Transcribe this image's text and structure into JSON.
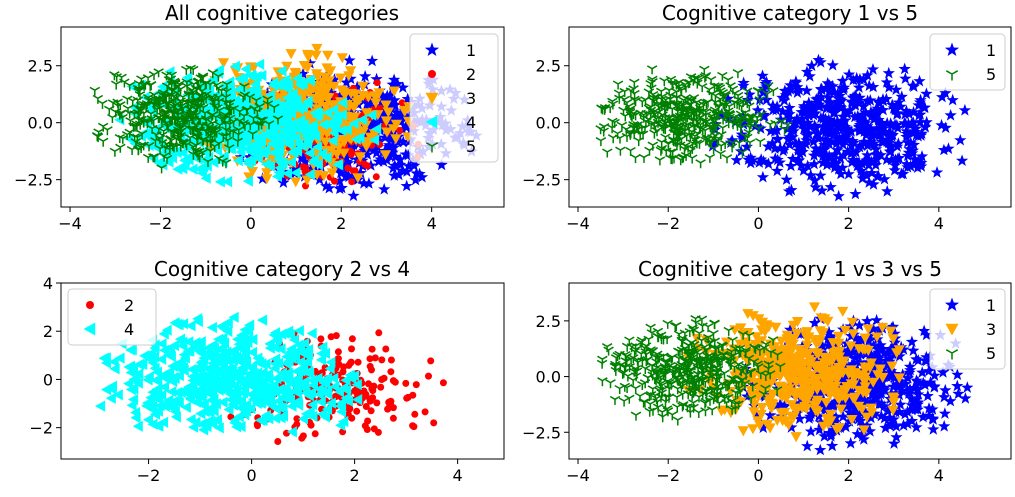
{
  "chart_data": [
    {
      "type": "scatter",
      "title": "All cognitive categories",
      "xlabel": "",
      "ylabel": "",
      "xlim": [
        -4.2,
        5.6
      ],
      "ylim": [
        -3.7,
        4.2
      ],
      "xticks": [
        -4,
        -2,
        0,
        2,
        4
      ],
      "yticks": [
        -2.5,
        0.0,
        2.5
      ],
      "xtick_labels": [
        "−4",
        "−2",
        "0",
        "2",
        "4"
      ],
      "ytick_labels": [
        "−2.5",
        "0.0",
        "2.5"
      ],
      "legend_position": "right",
      "series": [
        {
          "name": "1",
          "color": "#0000ff",
          "marker": "star",
          "approx_center": [
            2.2,
            -0.3
          ],
          "approx_spread": [
            1.1,
            1.3
          ],
          "approx_x_range": [
            -1.5,
            5.4
          ],
          "approx_y_range": [
            -3.4,
            3.9
          ]
        },
        {
          "name": "2",
          "color": "#ff0000",
          "marker": "circle",
          "approx_center": [
            1.6,
            -0.5
          ],
          "approx_spread": [
            0.9,
            1.1
          ],
          "approx_x_range": [
            -1.5,
            4.2
          ],
          "approx_y_range": [
            -2.8,
            3.5
          ]
        },
        {
          "name": "3",
          "color": "#ffa500",
          "marker": "triangle-down",
          "approx_center": [
            1.1,
            0.3
          ],
          "approx_spread": [
            1.0,
            1.3
          ],
          "approx_x_range": [
            -1.8,
            3.9
          ],
          "approx_y_range": [
            -2.8,
            3.8
          ]
        },
        {
          "name": "4",
          "color": "#00ffff",
          "marker": "triangle-left",
          "approx_center": [
            -0.2,
            0.0
          ],
          "approx_spread": [
            1.2,
            1.1
          ],
          "approx_x_range": [
            -3.0,
            3.0
          ],
          "approx_y_range": [
            -2.8,
            3.6
          ]
        },
        {
          "name": "5",
          "color": "#008000",
          "marker": "tri-down",
          "approx_center": [
            -1.6,
            0.3
          ],
          "approx_spread": [
            0.9,
            1.0
          ],
          "approx_x_range": [
            -3.5,
            2.0
          ],
          "approx_y_range": [
            -2.4,
            4.0
          ]
        }
      ]
    },
    {
      "type": "scatter",
      "title": "Cognitive category 1 vs 5",
      "xlabel": "",
      "ylabel": "",
      "xlim": [
        -4.2,
        5.6
      ],
      "ylim": [
        -3.7,
        4.2
      ],
      "xticks": [
        -4,
        -2,
        0,
        2,
        4
      ],
      "yticks": [
        -2.5,
        0.0,
        2.5
      ],
      "xtick_labels": [
        "−4",
        "−2",
        "0",
        "2",
        "4"
      ],
      "ytick_labels": [
        "−2.5",
        "0.0",
        "2.5"
      ],
      "legend_position": "top-right",
      "series": [
        {
          "name": "1",
          "color": "#0000ff",
          "marker": "star",
          "approx_center": [
            1.9,
            -0.2
          ],
          "approx_spread": [
            1.2,
            1.3
          ],
          "approx_x_range": [
            -1.5,
            5.4
          ],
          "approx_y_range": [
            -3.4,
            3.9
          ]
        },
        {
          "name": "5",
          "color": "#008000",
          "marker": "tri-down",
          "approx_center": [
            -1.6,
            0.3
          ],
          "approx_spread": [
            0.9,
            1.0
          ],
          "approx_x_range": [
            -3.5,
            2.0
          ],
          "approx_y_range": [
            -2.4,
            4.0
          ]
        }
      ]
    },
    {
      "type": "scatter",
      "title": "Cognitive category 2 vs 4",
      "xlabel": "",
      "ylabel": "",
      "xlim": [
        -3.7,
        4.9
      ],
      "ylim": [
        -3.3,
        4.0
      ],
      "xticks": [
        -2,
        0,
        2,
        4
      ],
      "yticks": [
        -2,
        0,
        2,
        4
      ],
      "xtick_labels": [
        "−2",
        "0",
        "2",
        "4"
      ],
      "ytick_labels": [
        "−2",
        "0",
        "2",
        "4"
      ],
      "legend_position": "top-left",
      "series": [
        {
          "name": "2",
          "color": "#ff0000",
          "marker": "circle",
          "approx_center": [
            1.6,
            -0.4
          ],
          "approx_spread": [
            0.9,
            1.1
          ],
          "approx_x_range": [
            -1.5,
            4.4
          ],
          "approx_y_range": [
            -2.8,
            3.5
          ]
        },
        {
          "name": "4",
          "color": "#00ffff",
          "marker": "triangle-left",
          "approx_center": [
            -0.3,
            0.0
          ],
          "approx_spread": [
            1.2,
            1.1
          ],
          "approx_x_range": [
            -3.0,
            2.6
          ],
          "approx_y_range": [
            -2.3,
            3.7
          ]
        }
      ]
    },
    {
      "type": "scatter",
      "title": "Cognitive category 1 vs 3 vs 5",
      "xlabel": "",
      "ylabel": "",
      "xlim": [
        -4.2,
        5.6
      ],
      "ylim": [
        -3.7,
        4.2
      ],
      "xticks": [
        -4,
        -2,
        0,
        2,
        4
      ],
      "yticks": [
        -2.5,
        0.0,
        2.5
      ],
      "xtick_labels": [
        "−4",
        "−2",
        "0",
        "2",
        "4"
      ],
      "ytick_labels": [
        "−2.5",
        "0.0",
        "2.5"
      ],
      "legend_position": "top-right",
      "series": [
        {
          "name": "1",
          "color": "#0000ff",
          "marker": "star",
          "approx_center": [
            2.1,
            -0.4
          ],
          "approx_spread": [
            1.1,
            1.3
          ],
          "approx_x_range": [
            -1.5,
            5.4
          ],
          "approx_y_range": [
            -3.4,
            3.9
          ]
        },
        {
          "name": "3",
          "color": "#ffa500",
          "marker": "triangle-down",
          "approx_center": [
            0.9,
            0.2
          ],
          "approx_spread": [
            1.0,
            1.3
          ],
          "approx_x_range": [
            -1.8,
            3.9
          ],
          "approx_y_range": [
            -2.8,
            3.8
          ]
        },
        {
          "name": "5",
          "color": "#008000",
          "marker": "tri-down",
          "approx_center": [
            -1.6,
            0.3
          ],
          "approx_spread": [
            0.9,
            1.0
          ],
          "approx_x_range": [
            -3.5,
            2.0
          ],
          "approx_y_range": [
            -2.4,
            4.0
          ]
        }
      ]
    }
  ]
}
